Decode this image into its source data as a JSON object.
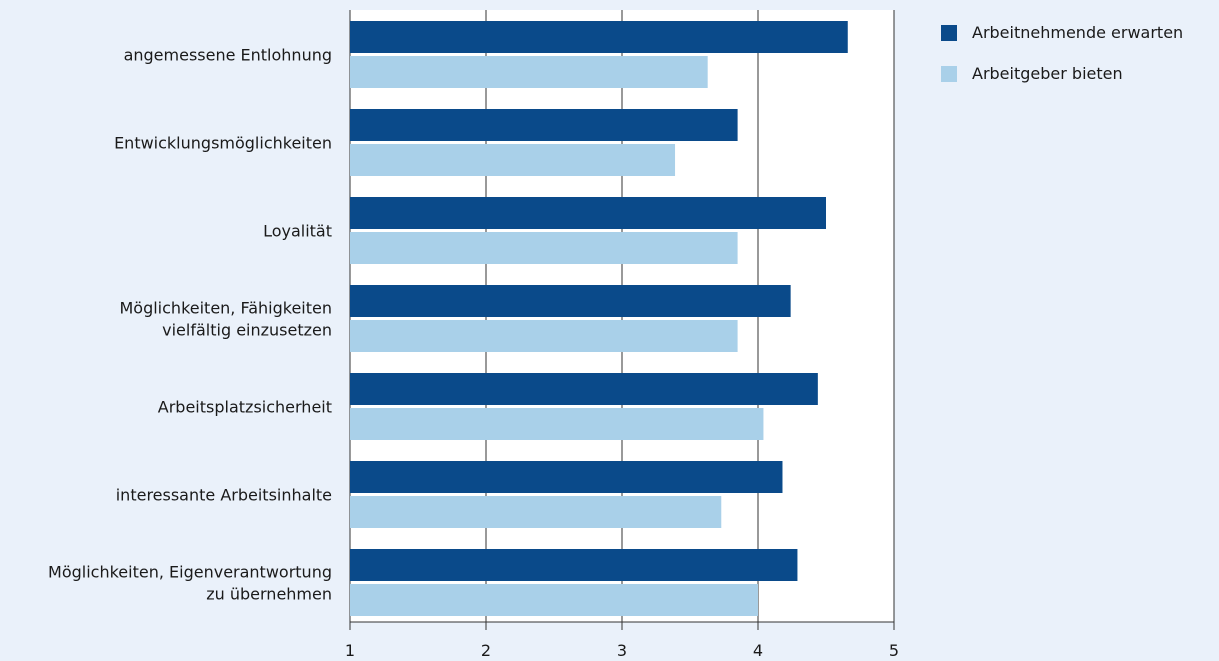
{
  "chart_data": {
    "type": "bar",
    "orientation": "horizontal",
    "categories": [
      [
        "angemessene Entlohnung"
      ],
      [
        "Entwicklungsmöglichkeiten"
      ],
      [
        "Loyalität"
      ],
      [
        "Möglichkeiten, Fähigkeiten",
        "vielfältig einzusetzen"
      ],
      [
        "Arbeitsplatzsicherheit"
      ],
      [
        "interessante Arbeitsinhalte"
      ],
      [
        "Möglichkeiten, Eigenverantwortung",
        "zu übernehmen"
      ]
    ],
    "series": [
      {
        "name": "Arbeitnehmende erwarten",
        "color": "#0a4a8a",
        "values": [
          4.66,
          3.85,
          4.5,
          4.24,
          4.44,
          4.18,
          4.29
        ]
      },
      {
        "name": "Arbeitgeber bieten",
        "color": "#a9d0e9",
        "values": [
          3.63,
          3.39,
          3.85,
          3.85,
          4.04,
          3.73,
          4.0
        ]
      }
    ],
    "xlim": [
      1,
      5
    ],
    "xticks": [
      1,
      2,
      3,
      4,
      5
    ],
    "grid": true,
    "legend_position": "top-right",
    "title": "",
    "xlabel": "",
    "ylabel": ""
  }
}
